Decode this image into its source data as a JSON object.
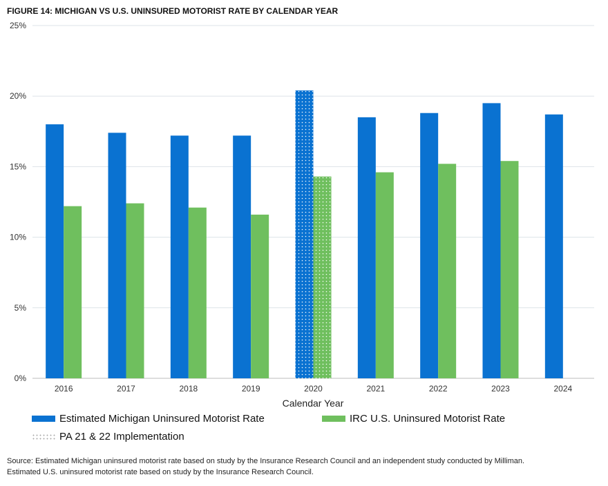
{
  "chart_data": {
    "type": "bar",
    "title": "FIGURE 14:    MICHIGAN VS U.S. UNINSURED MOTORIST RATE BY CALENDAR YEAR",
    "xlabel": "Calendar Year",
    "ylabel": "",
    "ylim": [
      0,
      25
    ],
    "yticks": [
      "0%",
      "5%",
      "10%",
      "15%",
      "20%",
      "25%"
    ],
    "grid": true,
    "legend_position": "bottom",
    "categories": [
      "2016",
      "2017",
      "2018",
      "2019",
      "2020",
      "2021",
      "2022",
      "2023",
      "2024"
    ],
    "series": [
      {
        "name": "Estimated Michigan Uninsured Motorist Rate",
        "color": "#0a72d1",
        "values": [
          18.0,
          17.4,
          17.2,
          17.2,
          20.4,
          18.5,
          18.8,
          19.5,
          18.7
        ]
      },
      {
        "name": "IRC U.S. Uninsured Motorist Rate",
        "color": "#6fbf5e",
        "values": [
          12.2,
          12.4,
          12.1,
          11.6,
          14.3,
          14.6,
          15.2,
          15.4,
          null
        ]
      }
    ],
    "highlight": {
      "name": "PA 21 & 22 Implementation",
      "category": "2020",
      "pattern": "dotted"
    }
  },
  "source": {
    "line1": "Source: Estimated Michigan uninsured motorist rate based on study by the Insurance Research Council and an independent study conducted by Milliman.",
    "line2": "Estimated U.S. uninsured motorist rate based on study by the Insurance Research Council."
  }
}
